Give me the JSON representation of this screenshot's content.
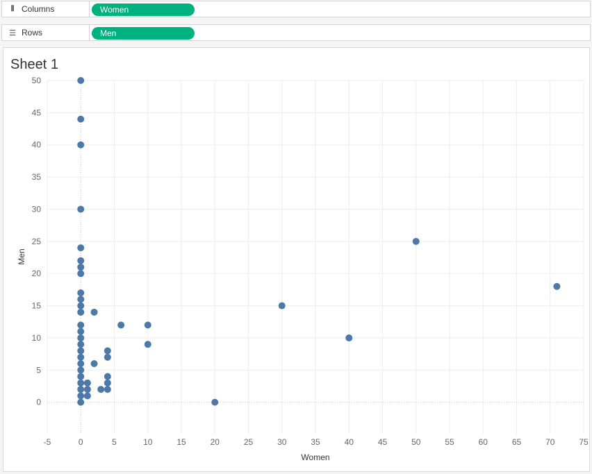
{
  "shelves": {
    "columns": {
      "label": "Columns",
      "icon": "columns-icon",
      "pill": "Women"
    },
    "rows": {
      "label": "Rows",
      "icon": "rows-icon",
      "pill": "Men"
    }
  },
  "sheet": {
    "title": "Sheet 1"
  },
  "colors": {
    "pill": "#00b180",
    "mark": "#4e79a7",
    "grid": "#eeeeee",
    "zero_line": "#cccccc",
    "tick_text": "#666666"
  },
  "chart_data": {
    "type": "scatter",
    "xlabel": "Women",
    "ylabel": "Men",
    "xlim": [
      -5,
      75
    ],
    "ylim": [
      -5,
      50
    ],
    "xticks": [
      -5,
      0,
      5,
      10,
      15,
      20,
      25,
      30,
      35,
      40,
      45,
      50,
      55,
      60,
      65,
      70,
      75
    ],
    "yticks": [
      0,
      5,
      10,
      15,
      20,
      25,
      30,
      35,
      40,
      45,
      50
    ],
    "grid": true,
    "points": [
      {
        "x": 0,
        "y": 50
      },
      {
        "x": 0,
        "y": 44
      },
      {
        "x": 0,
        "y": 40
      },
      {
        "x": 0,
        "y": 30
      },
      {
        "x": 0,
        "y": 24
      },
      {
        "x": 0,
        "y": 22
      },
      {
        "x": 0,
        "y": 21
      },
      {
        "x": 0,
        "y": 20
      },
      {
        "x": 0,
        "y": 17
      },
      {
        "x": 0,
        "y": 16
      },
      {
        "x": 0,
        "y": 15
      },
      {
        "x": 0,
        "y": 14
      },
      {
        "x": 0,
        "y": 12
      },
      {
        "x": 0,
        "y": 11
      },
      {
        "x": 0,
        "y": 10
      },
      {
        "x": 0,
        "y": 9
      },
      {
        "x": 0,
        "y": 8
      },
      {
        "x": 0,
        "y": 7
      },
      {
        "x": 0,
        "y": 6
      },
      {
        "x": 0,
        "y": 5
      },
      {
        "x": 0,
        "y": 4
      },
      {
        "x": 0,
        "y": 3
      },
      {
        "x": 0,
        "y": 2
      },
      {
        "x": 0,
        "y": 1
      },
      {
        "x": 0,
        "y": 0
      },
      {
        "x": 1,
        "y": 3
      },
      {
        "x": 1,
        "y": 2
      },
      {
        "x": 1,
        "y": 1
      },
      {
        "x": 2,
        "y": 14
      },
      {
        "x": 2,
        "y": 6
      },
      {
        "x": 3,
        "y": 2
      },
      {
        "x": 4,
        "y": 8
      },
      {
        "x": 4,
        "y": 7
      },
      {
        "x": 4,
        "y": 4
      },
      {
        "x": 4,
        "y": 3
      },
      {
        "x": 4,
        "y": 2
      },
      {
        "x": 6,
        "y": 12
      },
      {
        "x": 10,
        "y": 12
      },
      {
        "x": 10,
        "y": 9
      },
      {
        "x": 20,
        "y": 0
      },
      {
        "x": 30,
        "y": 15
      },
      {
        "x": 40,
        "y": 10
      },
      {
        "x": 50,
        "y": 25
      },
      {
        "x": 71,
        "y": 18
      }
    ]
  }
}
